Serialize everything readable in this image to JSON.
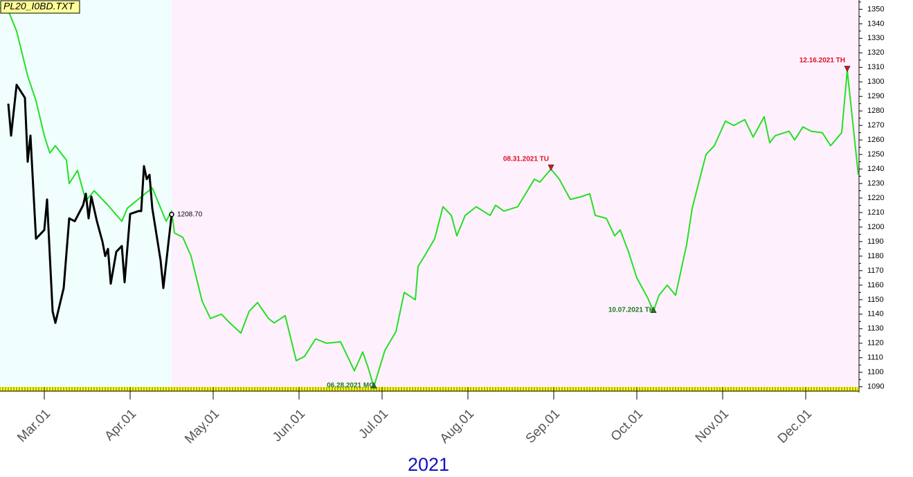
{
  "chart_data": {
    "type": "line",
    "title": "PL20_I0BD.TXT",
    "year_label": "2021",
    "xlim": [
      "2021-02-13",
      "2021-12-20"
    ],
    "ylim": [
      1087,
      1354
    ],
    "yticks": [
      1090,
      1100,
      1110,
      1120,
      1130,
      1140,
      1150,
      1160,
      1170,
      1180,
      1190,
      1200,
      1210,
      1220,
      1230,
      1240,
      1250,
      1260,
      1270,
      1280,
      1290,
      1300,
      1310,
      1320,
      1330,
      1340,
      1350
    ],
    "xticks": [
      {
        "value": "2021-03-01",
        "label": "Mar.01"
      },
      {
        "value": "2021-04-01",
        "label": "Apr.01"
      },
      {
        "value": "2021-05-01",
        "label": "May.01"
      },
      {
        "value": "2021-06-01",
        "label": "Jun.01"
      },
      {
        "value": "2021-07-01",
        "label": "Jul.01"
      },
      {
        "value": "2021-08-01",
        "label": "Aug.01"
      },
      {
        "value": "2021-09-01",
        "label": "Sep.01"
      },
      {
        "value": "2021-10-01",
        "label": "Oct.01"
      },
      {
        "value": "2021-11-01",
        "label": "Nov.01"
      },
      {
        "value": "2021-12-01",
        "label": "Dec.01"
      }
    ],
    "shading": [
      {
        "from": "2021-02-13",
        "to": "2021-04-16",
        "color": "#f0fffd"
      },
      {
        "from": "2021-04-16",
        "to": "2021-12-20",
        "color": "#fff0fd"
      }
    ],
    "series": [
      {
        "color": "#22e022",
        "x": [
          "2021-02-13",
          "2021-02-16",
          "2021-02-19",
          "2021-02-23",
          "2021-02-26",
          "2021-03-01",
          "2021-03-03",
          "2021-03-05",
          "2021-03-09",
          "2021-03-10",
          "2021-03-13",
          "2021-03-16",
          "2021-03-19",
          "2021-03-24",
          "2021-03-29",
          "2021-03-31",
          "2021-04-09",
          "2021-04-14",
          "2021-04-16",
          "2021-04-17",
          "2021-04-20",
          "2021-04-23",
          "2021-04-27",
          "2021-04-30",
          "2021-05-04",
          "2021-05-07",
          "2021-05-11",
          "2021-05-14",
          "2021-05-17",
          "2021-05-21",
          "2021-05-23",
          "2021-05-27",
          "2021-05-31",
          "2021-06-03",
          "2021-06-07",
          "2021-06-11",
          "2021-06-16",
          "2021-06-21",
          "2021-06-24",
          "2021-06-26",
          "2021-06-28",
          "2021-07-02",
          "2021-07-06",
          "2021-07-09",
          "2021-07-13",
          "2021-07-14",
          "2021-07-16",
          "2021-07-20",
          "2021-07-23",
          "2021-07-26",
          "2021-07-28",
          "2021-07-31",
          "2021-08-04",
          "2021-08-09",
          "2021-08-11",
          "2021-08-14",
          "2021-08-19",
          "2021-08-25",
          "2021-08-27",
          "2021-08-31",
          "2021-09-03",
          "2021-09-07",
          "2021-09-11",
          "2021-09-14",
          "2021-09-16",
          "2021-09-20",
          "2021-09-23",
          "2021-09-25",
          "2021-09-28",
          "2021-10-01",
          "2021-10-05",
          "2021-10-07",
          "2021-10-09",
          "2021-10-12",
          "2021-10-15",
          "2021-10-19",
          "2021-10-21",
          "2021-10-26",
          "2021-10-29",
          "2021-11-02",
          "2021-11-05",
          "2021-11-09",
          "2021-11-12",
          "2021-11-16",
          "2021-11-18",
          "2021-11-20",
          "2021-11-25",
          "2021-11-27",
          "2021-11-30",
          "2021-12-03",
          "2021-12-07",
          "2021-12-10",
          "2021-12-14",
          "2021-12-16",
          "2021-12-20"
        ],
        "values": [
          1351,
          1349,
          1335,
          1304,
          1287,
          1263,
          1251,
          1256,
          1246,
          1230,
          1239,
          1218,
          1225,
          1215,
          1204,
          1213,
          1227,
          1204,
          1211,
          1196,
          1193,
          1180,
          1149,
          1137,
          1140,
          1134,
          1127,
          1142,
          1148,
          1137,
          1134,
          1139,
          1108,
          1111,
          1123,
          1120,
          1121,
          1101,
          1114,
          1103,
          1090,
          1115,
          1128,
          1155,
          1150,
          1173,
          1179,
          1192,
          1214,
          1208,
          1194,
          1208,
          1214,
          1208,
          1215,
          1211,
          1214,
          1233,
          1231,
          1240,
          1233,
          1219,
          1221,
          1223,
          1208,
          1206,
          1194,
          1198,
          1183,
          1165,
          1151,
          1142,
          1153,
          1160,
          1153,
          1188,
          1213,
          1250,
          1256,
          1273,
          1270,
          1274,
          1262,
          1276,
          1258,
          1263,
          1266,
          1260,
          1269,
          1266,
          1265,
          1256,
          1265,
          1308,
          1236
        ]
      },
      {
        "color": "#000000",
        "x": [
          "2021-02-16",
          "2021-02-17",
          "2021-02-19",
          "2021-02-22",
          "2021-02-23",
          "2021-02-24",
          "2021-02-26",
          "2021-03-01",
          "2021-03-02",
          "2021-03-03",
          "2021-03-04",
          "2021-03-05",
          "2021-03-08",
          "2021-03-10",
          "2021-03-12",
          "2021-03-15",
          "2021-03-16",
          "2021-03-17",
          "2021-03-18",
          "2021-03-20",
          "2021-03-22",
          "2021-03-23",
          "2021-03-24",
          "2021-03-25",
          "2021-03-27",
          "2021-03-29",
          "2021-03-30",
          "2021-04-01",
          "2021-04-04",
          "2021-04-05",
          "2021-04-06",
          "2021-04-07",
          "2021-04-08",
          "2021-04-09",
          "2021-04-12",
          "2021-04-13",
          "2021-04-15",
          "2021-04-16"
        ],
        "values": [
          1285,
          1263,
          1298,
          1289,
          1245,
          1263,
          1192,
          1198,
          1219,
          1180,
          1142,
          1134,
          1158,
          1206,
          1204,
          1215,
          1223,
          1206,
          1221,
          1204,
          1190,
          1180,
          1185,
          1161,
          1183,
          1187,
          1162,
          1209,
          1211,
          1211,
          1242,
          1233,
          1236,
          1213,
          1177,
          1158,
          1192,
          1208.7
        ],
        "last_label": "1208.70"
      }
    ],
    "annotations": [
      {
        "text": "06.28.2021 MO",
        "x": "2021-06-28",
        "y": 1090,
        "marker": "up",
        "color": "#1a7a1a"
      },
      {
        "text": "08.31.2021 TU",
        "x": "2021-08-31",
        "y": 1240,
        "marker": "down",
        "color": "#e01020"
      },
      {
        "text": "10.07.2021 TH",
        "x": "2021-10-07",
        "y": 1142,
        "marker": "up",
        "color": "#1a7a1a"
      },
      {
        "text": "12.16.2021 TH",
        "x": "2021-12-16",
        "y": 1308,
        "marker": "down",
        "color": "#e01020"
      }
    ]
  }
}
